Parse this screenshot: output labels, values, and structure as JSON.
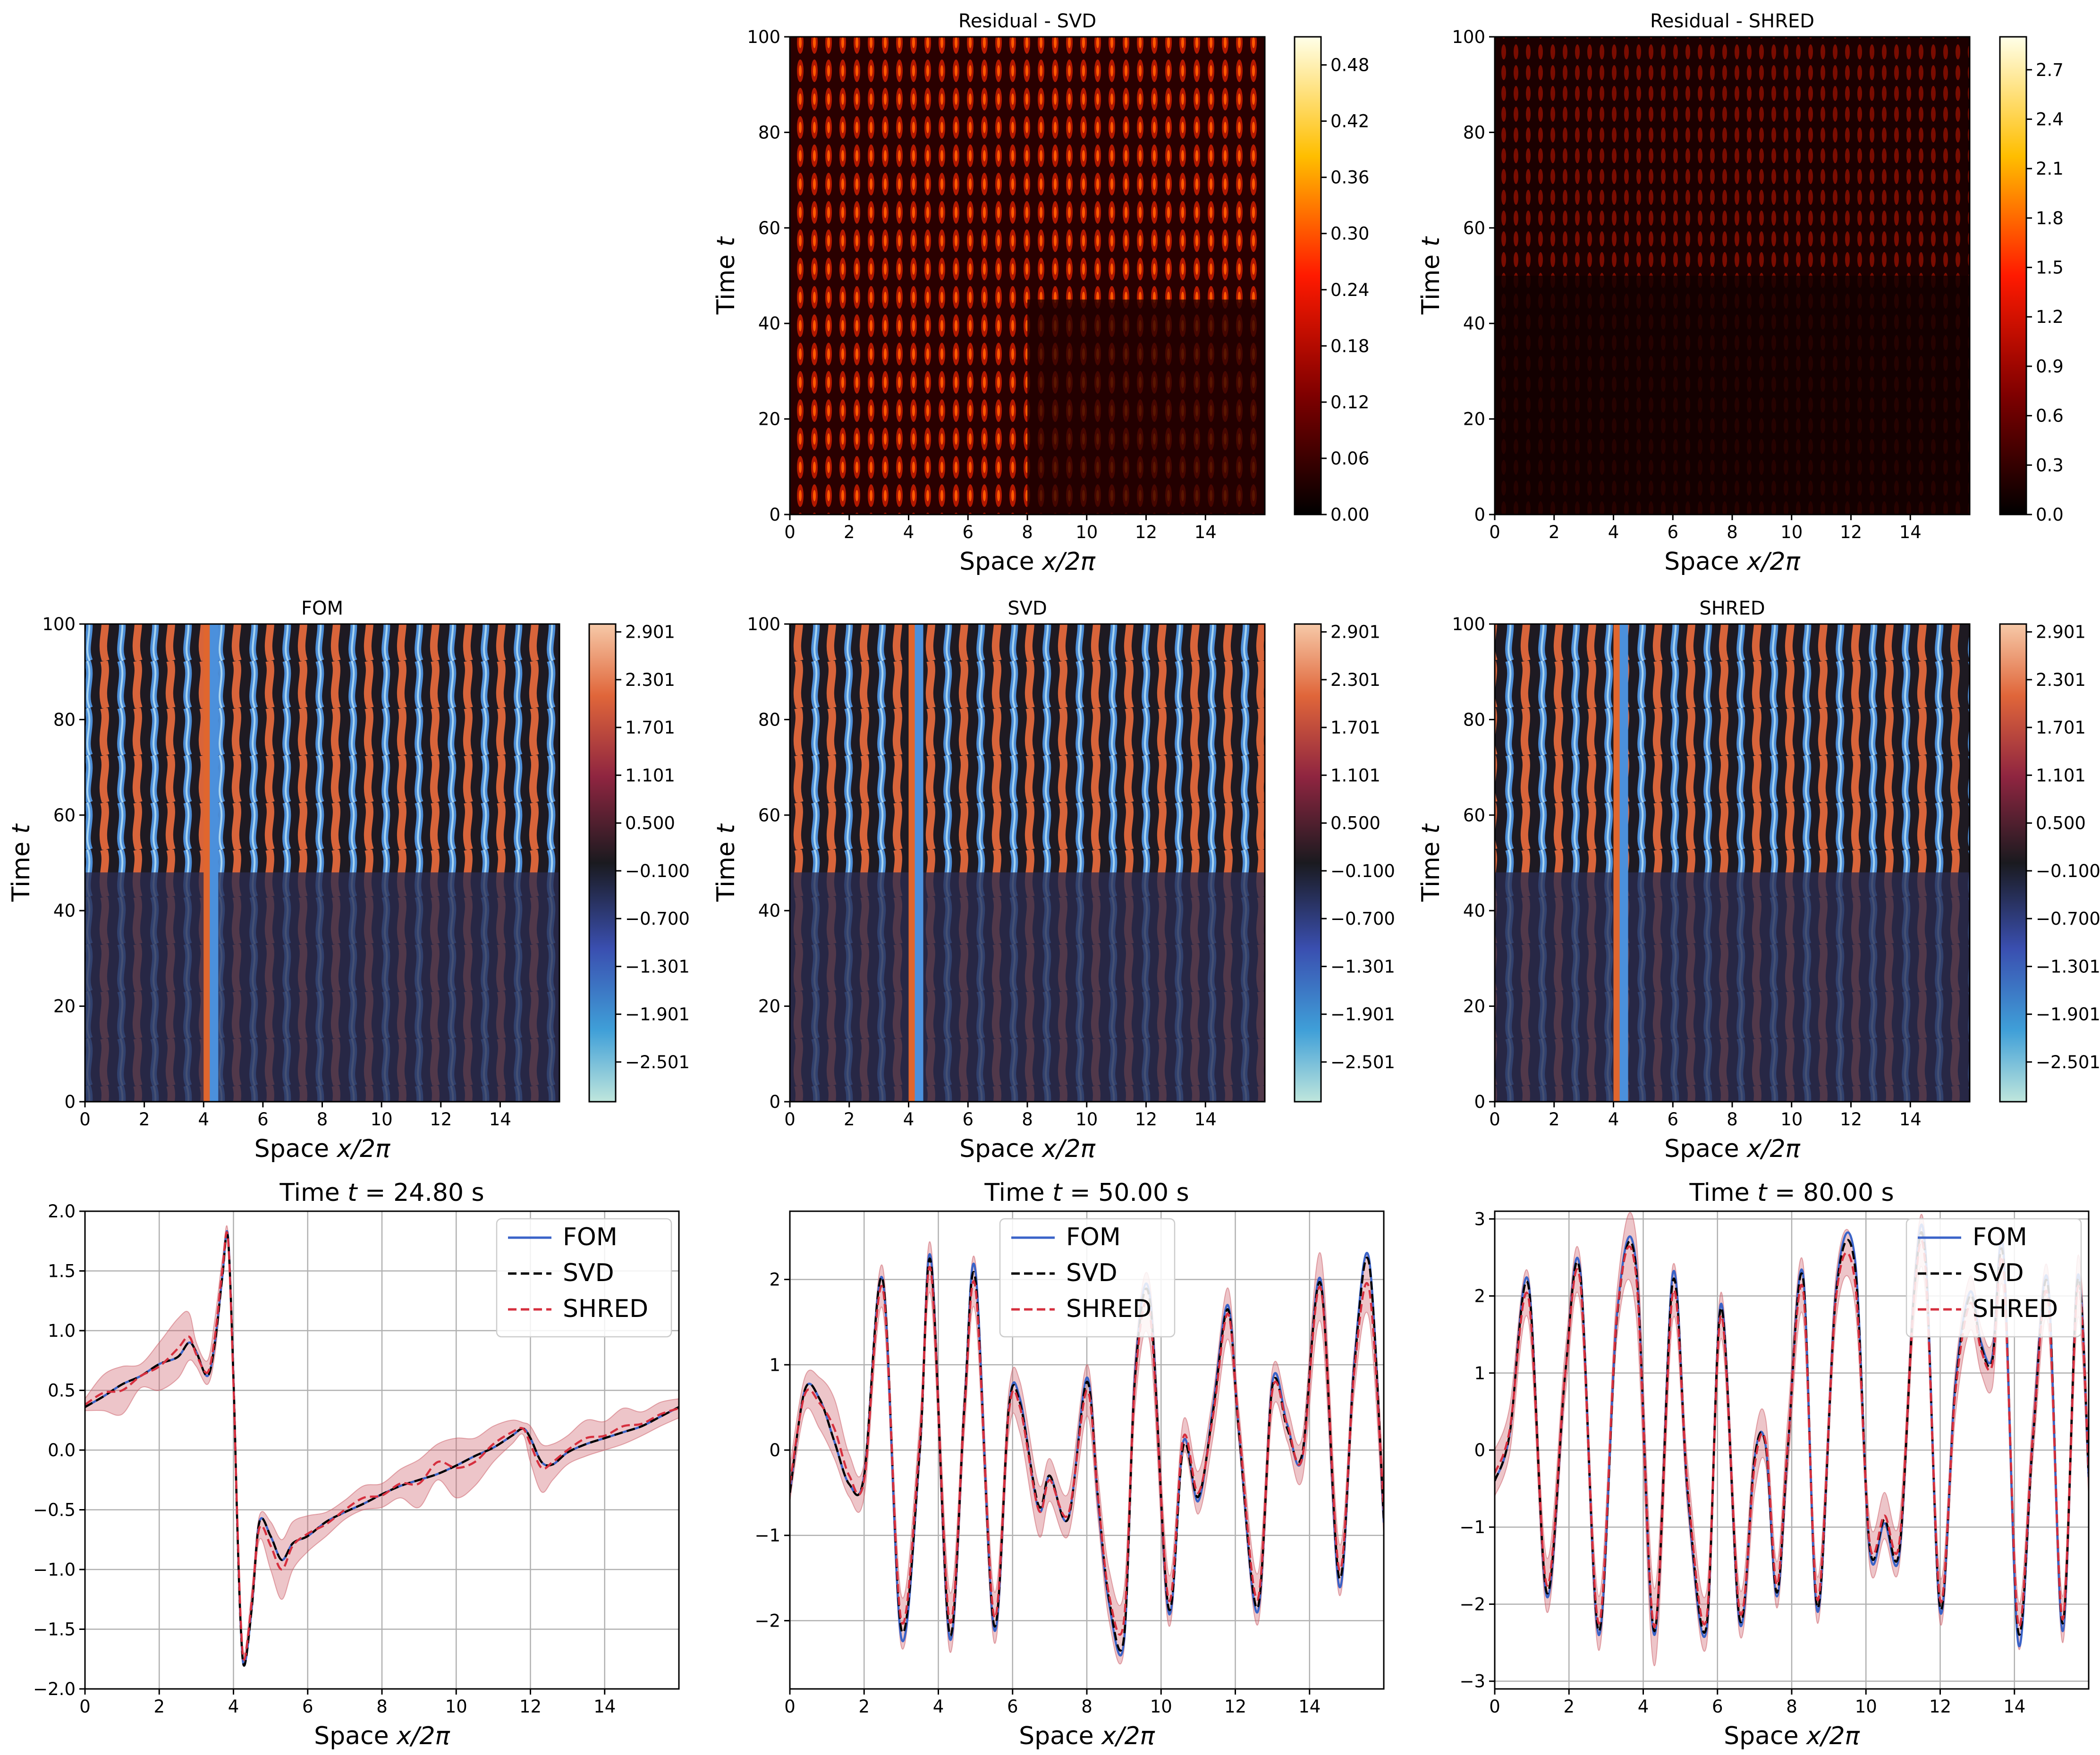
{
  "figure": {
    "heat_ticks_x": [
      "0",
      "2",
      "4",
      "6",
      "8",
      "10",
      "12",
      "14"
    ],
    "heat_ticks_y": [
      "0",
      "20",
      "40",
      "60",
      "80",
      "100"
    ],
    "xlabel_prefix": "Space ",
    "xlabel_math": "x/2π",
    "ylabel_prefix": "Time ",
    "ylabel_math": "t"
  },
  "chart_data": [
    {
      "id": "residual-svd",
      "type": "heatmap",
      "title": "Residual - SVD",
      "colormap": "afmhot",
      "colorbar_ticks": [
        "0.00",
        "0.06",
        "0.12",
        "0.18",
        "0.24",
        "0.30",
        "0.36",
        "0.42",
        "0.48"
      ],
      "colorbar_range": [
        0.0,
        0.51
      ],
      "xlim": [
        0,
        16
      ],
      "ylim": [
        0,
        100
      ]
    },
    {
      "id": "residual-shred",
      "type": "heatmap",
      "title": "Residual - SHRED",
      "colormap": "afmhot",
      "colorbar_ticks": [
        "0.0",
        "0.3",
        "0.6",
        "0.9",
        "1.2",
        "1.5",
        "1.8",
        "2.1",
        "2.4",
        "2.7"
      ],
      "colorbar_range": [
        0.0,
        2.9
      ],
      "xlim": [
        0,
        16
      ],
      "ylim": [
        0,
        100
      ]
    },
    {
      "id": "fom",
      "type": "heatmap",
      "title": "FOM",
      "colormap": "icefire",
      "colorbar_ticks": [
        "2.901",
        "2.301",
        "1.701",
        "1.101",
        "0.500",
        "−0.100",
        "−0.700",
        "−1.301",
        "−1.901",
        "−2.501"
      ],
      "colorbar_range": [
        -3.0,
        3.0
      ],
      "xlim": [
        0,
        16
      ],
      "ylim": [
        0,
        100
      ]
    },
    {
      "id": "svd",
      "type": "heatmap",
      "title": "SVD",
      "colormap": "icefire",
      "colorbar_ticks": [
        "2.901",
        "2.301",
        "1.701",
        "1.101",
        "0.500",
        "−0.100",
        "−0.700",
        "−1.301",
        "−1.901",
        "−2.501"
      ],
      "colorbar_range": [
        -3.0,
        3.0
      ],
      "xlim": [
        0,
        16
      ],
      "ylim": [
        0,
        100
      ]
    },
    {
      "id": "shred",
      "type": "heatmap",
      "title": "SHRED",
      "colormap": "icefire",
      "colorbar_ticks": [
        "2.901",
        "2.301",
        "1.701",
        "1.101",
        "0.500",
        "−0.100",
        "−0.700",
        "−1.301",
        "−1.901",
        "−2.501"
      ],
      "colorbar_range": [
        -3.0,
        3.0
      ],
      "xlim": [
        0,
        16
      ],
      "ylim": [
        0,
        100
      ]
    },
    {
      "id": "line-t24",
      "type": "line",
      "title_prefix": "Time ",
      "title_math": "t",
      "title_suffix": " = 24.80 s",
      "xlim": [
        0,
        16
      ],
      "ylim": [
        -2.0,
        2.0
      ],
      "xticks": [
        0,
        2,
        4,
        6,
        8,
        10,
        12,
        14
      ],
      "yticks": [
        -2.0,
        -1.5,
        -1.0,
        -0.5,
        0.0,
        0.5,
        1.0,
        1.5,
        2.0
      ],
      "ytick_labels": [
        "−2.0",
        "−1.5",
        "−1.0",
        "−0.5",
        "0.0",
        "0.5",
        "1.0",
        "1.5",
        "2.0"
      ],
      "legend": [
        "FOM",
        "SVD",
        "SHRED"
      ],
      "legend_position": "top-right",
      "grid": true,
      "x": [
        0,
        0.5,
        1.0,
        1.5,
        2.0,
        2.5,
        2.8,
        3.0,
        3.3,
        3.5,
        3.7,
        3.85,
        4.0,
        4.1,
        4.2,
        4.3,
        4.5,
        4.7,
        5.0,
        5.3,
        5.6,
        6.0,
        6.5,
        7.0,
        7.5,
        8.0,
        8.5,
        9.0,
        9.5,
        10.0,
        10.5,
        11.0,
        11.5,
        11.8,
        12.0,
        12.3,
        12.6,
        13.0,
        13.5,
        14.0,
        14.5,
        15.0,
        15.5,
        16.0
      ],
      "series": [
        {
          "name": "FOM",
          "values": [
            0.36,
            0.45,
            0.55,
            0.62,
            0.72,
            0.78,
            0.9,
            0.82,
            0.62,
            0.9,
            1.45,
            1.8,
            0.6,
            -0.6,
            -1.5,
            -1.8,
            -1.3,
            -0.6,
            -0.72,
            -0.92,
            -0.78,
            -0.72,
            -0.6,
            -0.52,
            -0.45,
            -0.37,
            -0.3,
            -0.25,
            -0.2,
            -0.13,
            -0.05,
            0.02,
            0.12,
            0.18,
            0.1,
            -0.1,
            -0.12,
            -0.02,
            0.05,
            0.1,
            0.15,
            0.2,
            0.28,
            0.36
          ]
        },
        {
          "name": "SVD",
          "values": [
            0.36,
            0.45,
            0.55,
            0.62,
            0.72,
            0.78,
            0.9,
            0.82,
            0.62,
            0.9,
            1.45,
            1.78,
            0.6,
            -0.6,
            -1.5,
            -1.8,
            -1.3,
            -0.6,
            -0.72,
            -0.92,
            -0.78,
            -0.72,
            -0.6,
            -0.52,
            -0.45,
            -0.37,
            -0.3,
            -0.25,
            -0.2,
            -0.13,
            -0.05,
            0.02,
            0.12,
            0.18,
            0.1,
            -0.1,
            -0.12,
            -0.02,
            0.05,
            0.1,
            0.15,
            0.2,
            0.28,
            0.36
          ]
        },
        {
          "name": "SHRED",
          "values": [
            0.38,
            0.48,
            0.5,
            0.62,
            0.7,
            0.85,
            0.95,
            0.8,
            0.65,
            0.95,
            1.5,
            1.78,
            0.55,
            -0.55,
            -1.45,
            -1.75,
            -1.25,
            -0.65,
            -0.8,
            -1.0,
            -0.8,
            -0.7,
            -0.62,
            -0.5,
            -0.4,
            -0.38,
            -0.28,
            -0.28,
            -0.1,
            -0.15,
            -0.1,
            0.05,
            0.15,
            0.18,
            0.05,
            -0.15,
            -0.1,
            0.0,
            0.1,
            0.12,
            0.2,
            0.22,
            0.3,
            0.35
          ]
        }
      ],
      "band": {
        "name": "SHRED",
        "half_width": [
          0.05,
          0.15,
          0.2,
          0.1,
          0.2,
          0.25,
          0.2,
          0.1,
          0.1,
          0.15,
          0.1,
          0.05,
          0.1,
          0.1,
          0.05,
          0.05,
          0.1,
          0.1,
          0.2,
          0.25,
          0.2,
          0.15,
          0.1,
          0.08,
          0.1,
          0.1,
          0.12,
          0.2,
          0.15,
          0.25,
          0.2,
          0.15,
          0.1,
          0.05,
          0.15,
          0.2,
          0.15,
          0.12,
          0.15,
          0.12,
          0.15,
          0.1,
          0.1,
          0.08
        ]
      }
    },
    {
      "id": "line-t50",
      "type": "line",
      "title_prefix": "Time ",
      "title_math": "t",
      "title_suffix": " = 50.00 s",
      "xlim": [
        0,
        16
      ],
      "ylim": [
        -2.8,
        2.8
      ],
      "xticks": [
        0,
        2,
        4,
        6,
        8,
        10,
        12,
        14
      ],
      "yticks": [
        -2,
        -1,
        0,
        1,
        2
      ],
      "ytick_labels": [
        "−2",
        "−1",
        "0",
        "1",
        "2"
      ],
      "legend": [
        "FOM",
        "SVD",
        "SHRED"
      ],
      "legend_position": "top-center",
      "grid": true,
      "x": [
        0,
        0.4,
        0.8,
        1.2,
        1.6,
        2.0,
        2.5,
        3.0,
        3.5,
        3.8,
        4.3,
        4.7,
        5.0,
        5.5,
        5.9,
        6.2,
        6.7,
        7.0,
        7.5,
        8.0,
        8.3,
        8.6,
        9.0,
        9.3,
        9.7,
        10.2,
        10.6,
        11.0,
        11.4,
        11.8,
        12.1,
        12.6,
        13.0,
        13.4,
        13.8,
        14.3,
        14.8,
        15.2,
        15.6,
        16.0
      ],
      "series": [
        {
          "name": "FOM",
          "values": [
            -0.5,
            0.7,
            0.6,
            0.1,
            -0.4,
            -0.3,
            2.0,
            -2.2,
            0.0,
            2.25,
            -2.2,
            0.5,
            2.1,
            -2.1,
            0.5,
            0.6,
            -0.7,
            -0.3,
            -0.8,
            0.85,
            -0.6,
            -1.8,
            -2.25,
            0.9,
            1.8,
            -1.9,
            0.1,
            -0.6,
            0.5,
            1.7,
            0.2,
            -1.9,
            0.8,
            0.3,
            -0.1,
            2.0,
            -1.6,
            1.0,
            2.25,
            -0.85
          ]
        },
        {
          "name": "SVD",
          "values": [
            -0.5,
            0.7,
            0.6,
            0.1,
            -0.4,
            -0.3,
            2.0,
            -2.1,
            0.0,
            2.2,
            -2.15,
            0.5,
            2.0,
            -2.05,
            0.5,
            0.55,
            -0.65,
            -0.3,
            -0.8,
            0.8,
            -0.55,
            -1.75,
            -2.2,
            0.85,
            1.75,
            -1.85,
            0.05,
            -0.55,
            0.45,
            1.65,
            0.2,
            -1.85,
            0.75,
            0.25,
            -0.05,
            1.95,
            -1.5,
            0.95,
            2.2,
            -0.8
          ]
        },
        {
          "name": "SHRED",
          "values": [
            -0.4,
            0.65,
            0.55,
            0.25,
            -0.3,
            -0.35,
            1.9,
            -2.0,
            0.1,
            2.1,
            -2.0,
            0.45,
            1.9,
            -1.95,
            0.45,
            0.5,
            -0.7,
            -0.35,
            -0.75,
            0.7,
            -0.55,
            -1.7,
            -2.0,
            0.8,
            1.6,
            -1.75,
            0.15,
            -0.5,
            0.4,
            1.6,
            0.25,
            -1.75,
            0.7,
            0.3,
            -0.1,
            1.9,
            -1.4,
            0.9,
            1.9,
            -0.7
          ]
        }
      ],
      "band": {
        "name": "SHRED",
        "half_width": [
          0.2,
          0.2,
          0.3,
          0.35,
          0.25,
          0.2,
          0.25,
          0.3,
          0.25,
          0.3,
          0.35,
          0.25,
          0.3,
          0.3,
          0.25,
          0.3,
          0.3,
          0.25,
          0.25,
          0.3,
          0.25,
          0.3,
          0.35,
          0.3,
          0.35,
          0.3,
          0.2,
          0.25,
          0.25,
          0.3,
          0.2,
          0.3,
          0.25,
          0.2,
          0.25,
          0.4,
          0.3,
          0.25,
          0.35,
          0.3
        ]
      }
    },
    {
      "id": "line-t80",
      "type": "line",
      "title_prefix": "Time ",
      "title_math": "t",
      "title_suffix": " = 80.00 s",
      "xlim": [
        0,
        16
      ],
      "ylim": [
        -3.1,
        3.1
      ],
      "xticks": [
        0,
        2,
        4,
        6,
        8,
        10,
        12,
        14
      ],
      "yticks": [
        -3,
        -2,
        -1,
        0,
        1,
        2,
        3
      ],
      "ytick_labels": [
        "−3",
        "−2",
        "−1",
        "0",
        "1",
        "2",
        "3"
      ],
      "legend": [
        "FOM",
        "SVD",
        "SHRED"
      ],
      "legend_position": "top-right",
      "grid": true,
      "x": [
        0,
        0.4,
        0.9,
        1.4,
        1.9,
        2.3,
        2.8,
        3.3,
        3.8,
        4.3,
        4.8,
        5.2,
        5.7,
        6.1,
        6.6,
        7.0,
        7.3,
        7.6,
        7.9,
        8.3,
        8.7,
        9.2,
        9.7,
        10.1,
        10.5,
        10.9,
        11.3,
        11.6,
        12.0,
        12.4,
        12.8,
        13.1,
        13.4,
        13.7,
        14.1,
        14.5,
        14.9,
        15.3,
        15.7,
        16.0
      ],
      "series": [
        {
          "name": "FOM",
          "values": [
            -0.4,
            0.2,
            2.2,
            -1.9,
            1.0,
            2.35,
            -2.4,
            1.8,
            2.45,
            -2.4,
            2.3,
            -0.6,
            -2.35,
            1.9,
            -2.25,
            -0.1,
            0.05,
            -1.9,
            0.05,
            2.3,
            -2.1,
            2.1,
            2.5,
            -1.3,
            -0.95,
            -1.35,
            2.1,
            2.6,
            -2.1,
            0.8,
            2.05,
            1.4,
            1.2,
            2.6,
            -2.5,
            0.2,
            2.2,
            -2.35,
            2.25,
            -0.35
          ]
        },
        {
          "name": "SVD",
          "values": [
            -0.4,
            0.2,
            2.15,
            -1.85,
            1.0,
            2.3,
            -2.35,
            1.75,
            2.4,
            -2.35,
            2.2,
            -0.55,
            -2.3,
            1.85,
            -2.2,
            -0.1,
            0.05,
            -1.85,
            0.05,
            2.25,
            -2.05,
            2.05,
            2.4,
            -1.25,
            -0.9,
            -1.3,
            2.05,
            2.5,
            -2.05,
            0.75,
            2.0,
            1.35,
            1.15,
            2.5,
            -2.35,
            0.15,
            2.15,
            -2.25,
            2.2,
            -0.3
          ]
        },
        {
          "name": "SHRED",
          "values": [
            -0.3,
            0.25,
            2.0,
            -1.75,
            1.0,
            2.2,
            -2.25,
            1.8,
            2.3,
            -2.3,
            2.05,
            -0.5,
            -2.2,
            1.75,
            -2.1,
            -0.2,
            0.1,
            -1.75,
            0.1,
            2.1,
            -1.95,
            2.0,
            2.2,
            -1.2,
            -0.85,
            -1.2,
            2.0,
            2.4,
            -1.95,
            0.7,
            1.9,
            1.3,
            1.1,
            2.4,
            -2.25,
            0.2,
            2.0,
            -2.2,
            2.1,
            -0.25
          ]
        }
      ],
      "band": {
        "name": "SHRED",
        "half_width": [
          0.3,
          0.3,
          0.3,
          0.35,
          0.3,
          0.3,
          0.35,
          0.3,
          0.5,
          0.5,
          0.35,
          0.3,
          0.35,
          0.3,
          0.3,
          0.35,
          0.3,
          0.3,
          0.35,
          0.35,
          0.3,
          0.3,
          0.3,
          0.3,
          0.3,
          0.3,
          0.3,
          0.35,
          0.3,
          0.3,
          0.35,
          0.3,
          0.3,
          0.35,
          0.3,
          0.3,
          0.35,
          0.3,
          0.4,
          0.35
        ]
      }
    }
  ],
  "colors": {
    "fom": "#3a63c8",
    "svd": "#000000",
    "shred": "#d62f3e",
    "band": "#cc5a64"
  }
}
